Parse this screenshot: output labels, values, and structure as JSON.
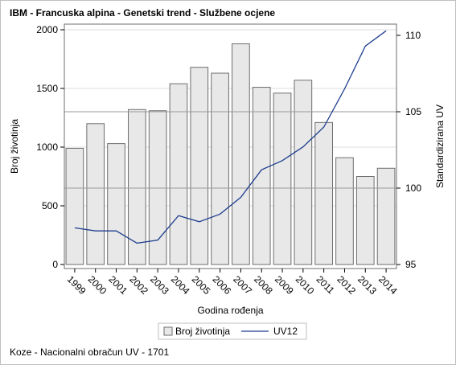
{
  "title": "IBM - Francuska alpina - Genetski trend - Službene ocjene",
  "footnote": "Koze - Nacionalni obračun UV - 1701",
  "chart_data": {
    "type": "bar",
    "categories": [
      "1999",
      "2000",
      "2001",
      "2002",
      "2003",
      "2004",
      "2005",
      "2006",
      "2007",
      "2008",
      "2009",
      "2010",
      "2011",
      "2012",
      "2013",
      "2014"
    ],
    "xlabel": "Godina rođenja",
    "ylabel": "Broj životinja",
    "y2label": "Standardizirana UV",
    "ylim": [
      0,
      2000
    ],
    "yticks": [
      0,
      500,
      1000,
      1500,
      2000
    ],
    "y2lim": [
      95,
      110
    ],
    "y2ticks": [
      95,
      100,
      105,
      110
    ],
    "grid": true,
    "legend_position": "bottom",
    "series": [
      {
        "name": "Broj životinja",
        "type": "bar",
        "axis": "left",
        "values": [
          990,
          1200,
          1030,
          1320,
          1310,
          1540,
          1680,
          1630,
          1880,
          1510,
          1460,
          1570,
          1210,
          910,
          750,
          820
        ]
      },
      {
        "name": "UV12",
        "type": "line",
        "axis": "right",
        "values": [
          97.4,
          97.2,
          97.2,
          96.4,
          96.6,
          98.2,
          97.8,
          98.3,
          99.4,
          101.2,
          101.8,
          102.7,
          104.0,
          106.5,
          109.3,
          110.3
        ]
      }
    ],
    "reference_lines": [
      {
        "axis": "right",
        "value": 105
      },
      {
        "axis": "right",
        "value": 100
      }
    ],
    "colors": {
      "bar_fill": "#e8e8e8",
      "bar_stroke": "#6d6d6d",
      "line": "#1f3e8f",
      "grid": "#dcdcdc",
      "refline": "#9a9a9a"
    }
  }
}
